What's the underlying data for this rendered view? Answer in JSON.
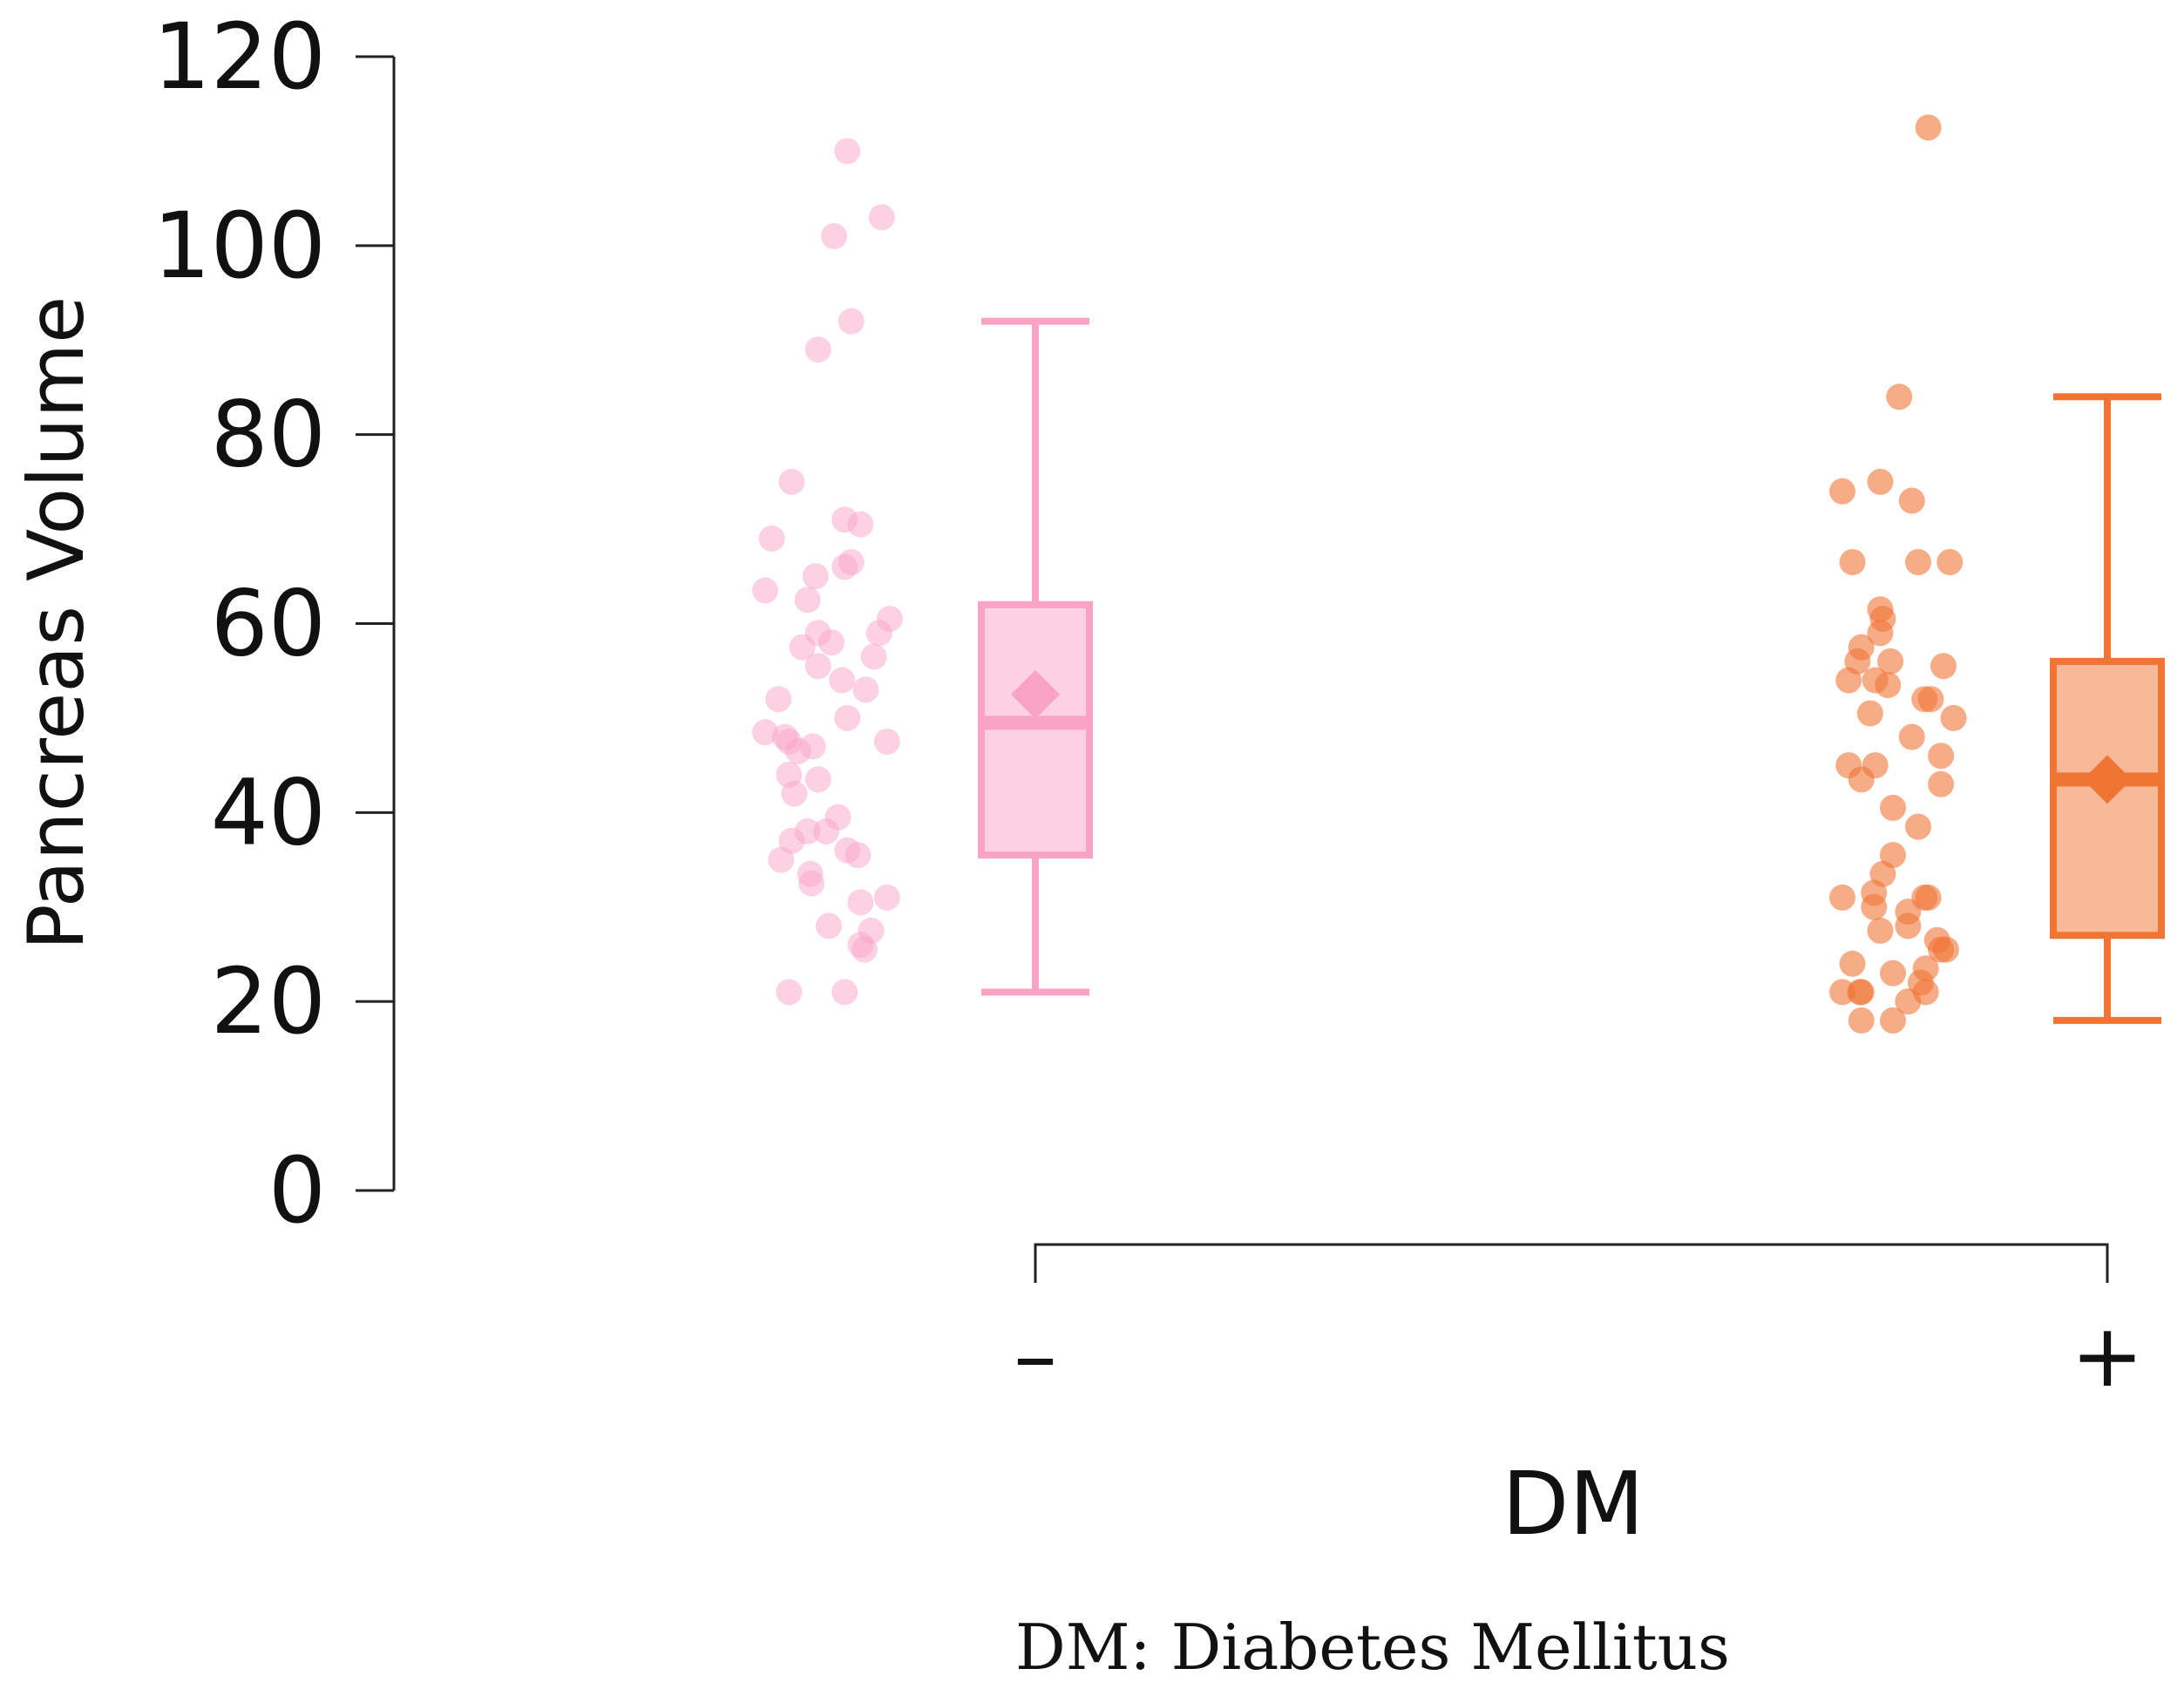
{
  "chart_data": {
    "type": "box",
    "xlabel": "DM",
    "ylabel": "Pancreas Volume",
    "ylim": [
      0,
      120
    ],
    "yticks": [
      0,
      20,
      40,
      60,
      80,
      100,
      120
    ],
    "categories": [
      "–",
      "+"
    ],
    "footnote": "DM: Diabetes Mellitus",
    "series": [
      {
        "name": "–",
        "box_color": "#f9a3c7",
        "box_fill": "#fdd0e2",
        "point_color": "#f9a3c7",
        "whisker_low": 21,
        "q1": 35.5,
        "median": 49.5,
        "q3": 62,
        "whisker_high": 92,
        "mean": 52.5,
        "points": [
          {
            "j": 0.62,
            "y": 110
          },
          {
            "j": 0.88,
            "y": 103
          },
          {
            "j": 0.52,
            "y": 101
          },
          {
            "j": 0.65,
            "y": 92
          },
          {
            "j": 0.4,
            "y": 89
          },
          {
            "j": 0.2,
            "y": 75
          },
          {
            "j": 0.6,
            "y": 71
          },
          {
            "j": 0.72,
            "y": 70.5
          },
          {
            "j": 0.05,
            "y": 69
          },
          {
            "j": 0.65,
            "y": 66.5
          },
          {
            "j": 0.6,
            "y": 66
          },
          {
            "j": 0.38,
            "y": 65
          },
          {
            "j": 0.0,
            "y": 63.5
          },
          {
            "j": 0.32,
            "y": 62.5
          },
          {
            "j": 0.94,
            "y": 60.5
          },
          {
            "j": 0.4,
            "y": 59
          },
          {
            "j": 0.86,
            "y": 59
          },
          {
            "j": 0.5,
            "y": 58
          },
          {
            "j": 0.28,
            "y": 57.5
          },
          {
            "j": 0.82,
            "y": 56.5
          },
          {
            "j": 0.4,
            "y": 55.5
          },
          {
            "j": 0.58,
            "y": 54
          },
          {
            "j": 0.76,
            "y": 53
          },
          {
            "j": 0.1,
            "y": 52
          },
          {
            "j": 0.62,
            "y": 50
          },
          {
            "j": 0.0,
            "y": 48.5
          },
          {
            "j": 0.15,
            "y": 48
          },
          {
            "j": 0.92,
            "y": 47.5
          },
          {
            "j": 0.18,
            "y": 47.5
          },
          {
            "j": 0.36,
            "y": 47
          },
          {
            "j": 0.25,
            "y": 46.5
          },
          {
            "j": 0.18,
            "y": 44
          },
          {
            "j": 0.4,
            "y": 43.5
          },
          {
            "j": 0.22,
            "y": 42
          },
          {
            "j": 0.55,
            "y": 39.5
          },
          {
            "j": 0.32,
            "y": 38
          },
          {
            "j": 0.46,
            "y": 38
          },
          {
            "j": 0.2,
            "y": 37
          },
          {
            "j": 0.62,
            "y": 36
          },
          {
            "j": 0.7,
            "y": 35.5
          },
          {
            "j": 0.12,
            "y": 35
          },
          {
            "j": 0.34,
            "y": 33.5
          },
          {
            "j": 0.35,
            "y": 32.5
          },
          {
            "j": 0.92,
            "y": 31
          },
          {
            "j": 0.72,
            "y": 30.5
          },
          {
            "j": 0.48,
            "y": 28
          },
          {
            "j": 0.8,
            "y": 27.5
          },
          {
            "j": 0.72,
            "y": 26
          },
          {
            "j": 0.75,
            "y": 25.5
          },
          {
            "j": 0.18,
            "y": 21
          },
          {
            "j": 0.6,
            "y": 21
          }
        ]
      },
      {
        "name": "+",
        "box_color": "#f07535",
        "box_fill": "#f9b999",
        "point_color": "#f07535",
        "whisker_low": 18,
        "q1": 27,
        "median": 43.5,
        "q3": 56,
        "whisker_high": 84,
        "mean": 43.5,
        "points": [
          {
            "j": 0.68,
            "y": 112.5
          },
          {
            "j": 0.45,
            "y": 84
          },
          {
            "j": 0.3,
            "y": 75
          },
          {
            "j": 0.0,
            "y": 74
          },
          {
            "j": 0.55,
            "y": 73
          },
          {
            "j": 0.08,
            "y": 66.5
          },
          {
            "j": 0.6,
            "y": 66.5
          },
          {
            "j": 0.85,
            "y": 66.5
          },
          {
            "j": 0.3,
            "y": 61.5
          },
          {
            "j": 0.32,
            "y": 60.5
          },
          {
            "j": 0.3,
            "y": 59
          },
          {
            "j": 0.15,
            "y": 57.5
          },
          {
            "j": 0.12,
            "y": 56
          },
          {
            "j": 0.38,
            "y": 56
          },
          {
            "j": 0.8,
            "y": 55.5
          },
          {
            "j": 0.05,
            "y": 54
          },
          {
            "j": 0.26,
            "y": 54
          },
          {
            "j": 0.36,
            "y": 53.5
          },
          {
            "j": 0.65,
            "y": 52
          },
          {
            "j": 0.7,
            "y": 52
          },
          {
            "j": 0.22,
            "y": 50.5
          },
          {
            "j": 0.88,
            "y": 50
          },
          {
            "j": 0.55,
            "y": 48
          },
          {
            "j": 0.78,
            "y": 46
          },
          {
            "j": 0.05,
            "y": 45
          },
          {
            "j": 0.26,
            "y": 45
          },
          {
            "j": 0.15,
            "y": 43.5
          },
          {
            "j": 0.78,
            "y": 43
          },
          {
            "j": 0.4,
            "y": 40.5
          },
          {
            "j": 0.6,
            "y": 38.5
          },
          {
            "j": 0.4,
            "y": 35.5
          },
          {
            "j": 0.32,
            "y": 33.5
          },
          {
            "j": 0.25,
            "y": 31.5
          },
          {
            "j": 0.0,
            "y": 31
          },
          {
            "j": 0.65,
            "y": 31
          },
          {
            "j": 0.68,
            "y": 31
          },
          {
            "j": 0.25,
            "y": 30
          },
          {
            "j": 0.52,
            "y": 29.5
          },
          {
            "j": 0.52,
            "y": 28
          },
          {
            "j": 0.3,
            "y": 27.5
          },
          {
            "j": 0.75,
            "y": 26.5
          },
          {
            "j": 0.78,
            "y": 25.5
          },
          {
            "j": 0.82,
            "y": 25.5
          },
          {
            "j": 0.08,
            "y": 24
          },
          {
            "j": 0.66,
            "y": 23.5
          },
          {
            "j": 0.4,
            "y": 23
          },
          {
            "j": 0.62,
            "y": 22
          },
          {
            "j": 0.0,
            "y": 21
          },
          {
            "j": 0.14,
            "y": 21
          },
          {
            "j": 0.15,
            "y": 21
          },
          {
            "j": 0.66,
            "y": 21
          },
          {
            "j": 0.52,
            "y": 20
          },
          {
            "j": 0.15,
            "y": 18
          },
          {
            "j": 0.4,
            "y": 18
          }
        ]
      }
    ]
  }
}
